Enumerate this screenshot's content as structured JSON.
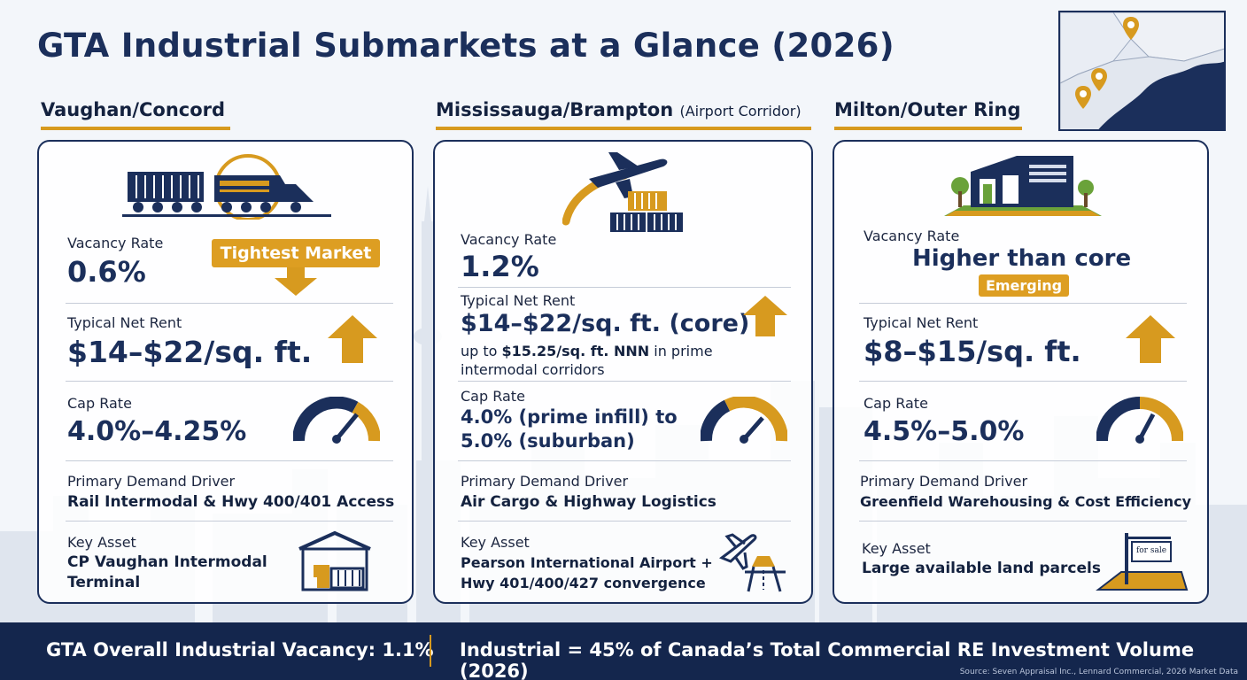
{
  "title": "GTA Industrial Submarkets at a Glance (2026)",
  "colors": {
    "navy": "#1b2f5b",
    "gold": "#d79a1f",
    "footer": "#14264d"
  },
  "markets": [
    {
      "name": "Vaughan/Concord",
      "icon": "freight-train-icon",
      "vacancy_label": "Vacancy Rate",
      "vacancy_value": "0.6%",
      "vacancy_badge": "Tightest Market",
      "rent_label": "Typical Net Rent",
      "rent_value": "$14–$22/sq. ft.",
      "cap_label": "Cap Rate",
      "cap_value": "4.0%–4.25%",
      "driver_label": "Primary Demand Driver",
      "driver_value": "Rail Intermodal & Hwy 400/401 Access",
      "asset_label": "Key Asset",
      "asset_line1": "CP Vaughan Intermodal",
      "asset_line2": "Terminal"
    },
    {
      "name": "Mississauga/Brampton",
      "name_suffix": "(Airport Corridor)",
      "icon": "airplane-cargo-icon",
      "vacancy_label": "Vacancy Rate",
      "vacancy_value": "1.2%",
      "rent_label": "Typical Net Rent",
      "rent_value": "$14–$22/sq. ft. (core)",
      "rent_note_prefix": "up to ",
      "rent_note_bold": "$15.25/sq. ft. NNN",
      "rent_note_suffix": " in prime",
      "rent_note_line2": "intermodal corridors",
      "cap_label": "Cap Rate",
      "cap_line1": "4.0% (prime infill) to",
      "cap_line2": "5.0% (suburban)",
      "driver_label": "Primary Demand Driver",
      "driver_value": "Air Cargo & Highway Logistics",
      "asset_label": "Key Asset",
      "asset_line1": "Pearson International Airport +",
      "asset_line2": "Hwy 401/400/427 convergence"
    },
    {
      "name": "Milton/Outer Ring",
      "icon": "warehouse-icon",
      "vacancy_label": "Vacancy Rate",
      "vacancy_value": "Higher than core",
      "vacancy_badge": "Emerging",
      "rent_label": "Typical Net Rent",
      "rent_value": "$8–$15/sq. ft.",
      "cap_label": "Cap Rate",
      "cap_value": "4.5%–5.0%",
      "driver_label": "Primary Demand Driver",
      "driver_value": "Greenfield Warehousing & Cost Efficiency",
      "asset_label": "Key Asset",
      "asset_line1": "Large available land parcels",
      "sign_text": "for sale"
    }
  ],
  "footer": {
    "left": "GTA Overall Industrial Vacancy: 1.1%",
    "right": "Industrial = 45% of Canada’s Total Commercial RE Investment Volume (2026)",
    "source": "Source: Seven Appraisal Inc., Lennard Commercial, 2026 Market Data"
  }
}
